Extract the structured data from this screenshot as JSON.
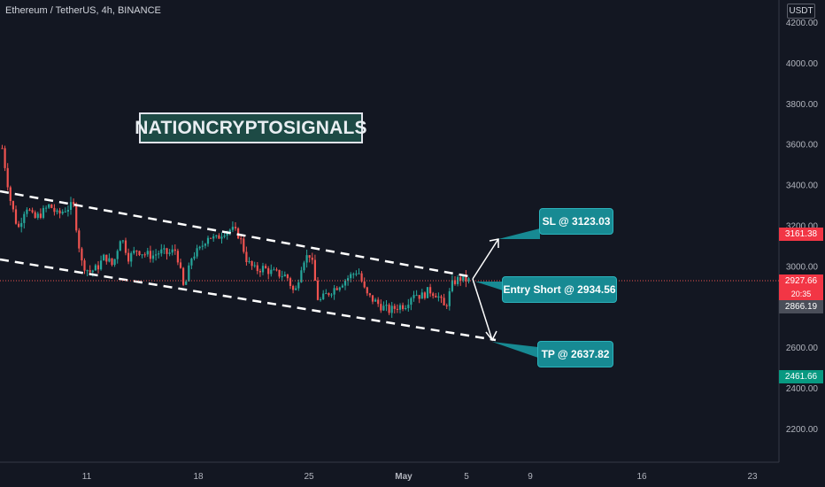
{
  "header": {
    "title": "Ethereum / TetherUS, 4h, BINANCE"
  },
  "watermark": {
    "text": "NATIONCRYPTOSIGNALS"
  },
  "axis": {
    "unit": "USDT",
    "y_ticks": [
      "4200.00",
      "4000.00",
      "3800.00",
      "3600.00",
      "3400.00",
      "3200.00",
      "3000.00",
      "2800.00",
      "2600.00",
      "2400.00",
      "2200.00"
    ],
    "y_values": [
      4200,
      4000,
      3800,
      3600,
      3400,
      3200,
      3000,
      2800,
      2600,
      2400,
      2200
    ],
    "x_ticks": [
      "11",
      "18",
      "25",
      "May",
      "5",
      "9",
      "16",
      "23"
    ]
  },
  "callouts": {
    "sl": "SL @ 3123.03",
    "entry": "Entry Short @ 2934.56",
    "tp": "TP @ 2637.82"
  },
  "price_tags": {
    "resistance": "3161.38",
    "current": "2927.66",
    "countdown": "20:35",
    "previous": "2866.19",
    "support": "2461.66"
  },
  "colors": {
    "background": "#131722",
    "bull": "#26a69a",
    "bear": "#ef5350",
    "callout": "#178a93",
    "resistance_tag": "#f23645",
    "support_tag": "#089981",
    "previous_tag": "#4a4e59"
  },
  "chart_data": {
    "type": "candlestick",
    "symbol": "Ethereum / TetherUS",
    "interval": "4h",
    "exchange": "BINANCE",
    "ylim": [
      2100,
      4260
    ],
    "x": [
      "11",
      "18",
      "25",
      "May",
      "5"
    ],
    "close_path": [
      3580,
      3330,
      3180,
      3300,
      3230,
      3260,
      3300,
      3250,
      3280,
      3300,
      3020,
      2970,
      2990,
      3050,
      3000,
      3150,
      3040,
      3080,
      3060,
      3050,
      3070,
      3060,
      3080,
      2880,
      3050,
      3080,
      3150,
      3130,
      3170,
      3180,
      3150,
      3020,
      2980,
      2990,
      2970,
      2960,
      2950,
      2860,
      3030,
      3060,
      2820,
      2860,
      2890,
      2920,
      2950,
      2980,
      2860,
      2830,
      2800,
      2780,
      2800,
      2810,
      2870,
      2850,
      2880,
      2860,
      2790,
      2920,
      2940,
      2928
    ],
    "levels": {
      "sl": 3123.03,
      "entry": 2934.56,
      "tp": 2637.82
    }
  }
}
